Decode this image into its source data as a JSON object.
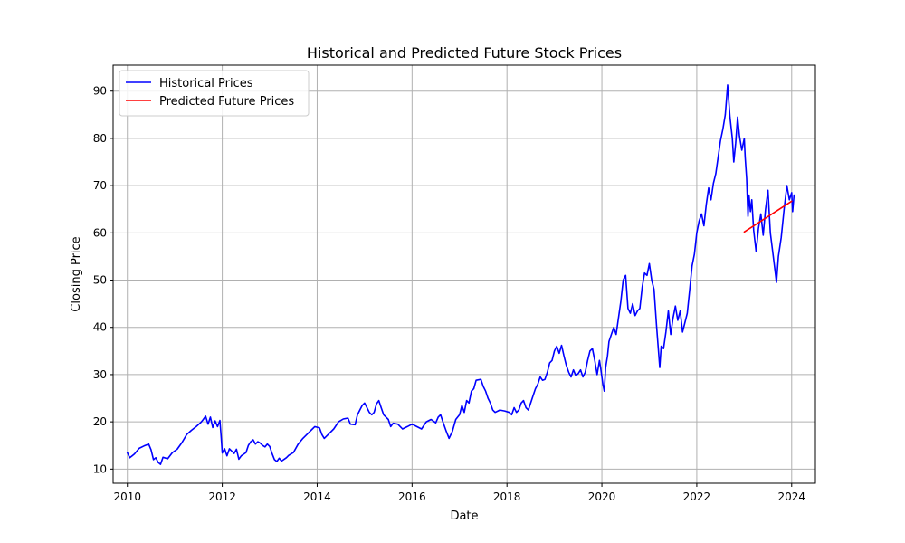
{
  "chart_data": {
    "type": "line",
    "title": "Historical and Predicted Future Stock Prices",
    "xlabel": "Date",
    "ylabel": "Closing Price",
    "xlim": [
      2009.7,
      2024.5
    ],
    "ylim": [
      7,
      95.5
    ],
    "x_ticks": [
      2010,
      2012,
      2014,
      2016,
      2018,
      2020,
      2022,
      2024
    ],
    "y_ticks": [
      10,
      20,
      30,
      40,
      50,
      60,
      70,
      80,
      90
    ],
    "grid": true,
    "legend_position": "top-left",
    "series": [
      {
        "name": "Historical Prices",
        "color": "#0000ff",
        "points": [
          [
            2010.0,
            13.5
          ],
          [
            2010.05,
            12.4
          ],
          [
            2010.1,
            12.8
          ],
          [
            2010.15,
            13.2
          ],
          [
            2010.25,
            14.4
          ],
          [
            2010.35,
            14.9
          ],
          [
            2010.45,
            15.3
          ],
          [
            2010.5,
            14.1
          ],
          [
            2010.55,
            12.0
          ],
          [
            2010.6,
            12.4
          ],
          [
            2010.65,
            11.4
          ],
          [
            2010.7,
            11.0
          ],
          [
            2010.75,
            12.5
          ],
          [
            2010.85,
            12.2
          ],
          [
            2010.95,
            13.5
          ],
          [
            2011.05,
            14.2
          ],
          [
            2011.15,
            15.6
          ],
          [
            2011.25,
            17.3
          ],
          [
            2011.35,
            18.2
          ],
          [
            2011.45,
            19.0
          ],
          [
            2011.55,
            19.9
          ],
          [
            2011.6,
            20.5
          ],
          [
            2011.65,
            21.2
          ],
          [
            2011.7,
            19.5
          ],
          [
            2011.75,
            21.0
          ],
          [
            2011.8,
            18.8
          ],
          [
            2011.85,
            20.2
          ],
          [
            2011.9,
            19.0
          ],
          [
            2011.95,
            20.3
          ],
          [
            2011.98,
            16.5
          ],
          [
            2012.0,
            13.4
          ],
          [
            2012.05,
            14.3
          ],
          [
            2012.1,
            12.8
          ],
          [
            2012.15,
            14.3
          ],
          [
            2012.25,
            13.3
          ],
          [
            2012.3,
            14.2
          ],
          [
            2012.35,
            12.1
          ],
          [
            2012.4,
            12.8
          ],
          [
            2012.5,
            13.5
          ],
          [
            2012.55,
            15.0
          ],
          [
            2012.6,
            15.8
          ],
          [
            2012.65,
            16.2
          ],
          [
            2012.7,
            15.3
          ],
          [
            2012.75,
            15.8
          ],
          [
            2012.8,
            15.5
          ],
          [
            2012.85,
            15.0
          ],
          [
            2012.9,
            14.7
          ],
          [
            2012.95,
            15.3
          ],
          [
            2013.0,
            14.8
          ],
          [
            2013.05,
            13.3
          ],
          [
            2013.1,
            12.0
          ],
          [
            2013.15,
            11.6
          ],
          [
            2013.2,
            12.3
          ],
          [
            2013.25,
            11.7
          ],
          [
            2013.35,
            12.4
          ],
          [
            2013.4,
            12.9
          ],
          [
            2013.5,
            13.5
          ],
          [
            2013.6,
            15.3
          ],
          [
            2013.7,
            16.5
          ],
          [
            2013.8,
            17.5
          ],
          [
            2013.9,
            18.5
          ],
          [
            2013.95,
            19.0
          ],
          [
            2014.05,
            18.7
          ],
          [
            2014.1,
            17.3
          ],
          [
            2014.15,
            16.5
          ],
          [
            2014.25,
            17.5
          ],
          [
            2014.35,
            18.5
          ],
          [
            2014.45,
            20.0
          ],
          [
            2014.55,
            20.6
          ],
          [
            2014.65,
            20.8
          ],
          [
            2014.7,
            19.5
          ],
          [
            2014.8,
            19.4
          ],
          [
            2014.85,
            21.5
          ],
          [
            2014.9,
            22.5
          ],
          [
            2014.95,
            23.5
          ],
          [
            2015.0,
            24.0
          ],
          [
            2015.05,
            23.0
          ],
          [
            2015.1,
            22.0
          ],
          [
            2015.15,
            21.5
          ],
          [
            2015.2,
            22.0
          ],
          [
            2015.25,
            23.8
          ],
          [
            2015.3,
            24.5
          ],
          [
            2015.35,
            23.0
          ],
          [
            2015.4,
            21.5
          ],
          [
            2015.5,
            20.5
          ],
          [
            2015.55,
            19.0
          ],
          [
            2015.6,
            19.7
          ],
          [
            2015.7,
            19.5
          ],
          [
            2015.8,
            18.5
          ],
          [
            2015.9,
            19.0
          ],
          [
            2016.0,
            19.5
          ],
          [
            2016.1,
            19.0
          ],
          [
            2016.2,
            18.5
          ],
          [
            2016.3,
            20.0
          ],
          [
            2016.4,
            20.5
          ],
          [
            2016.5,
            19.8
          ],
          [
            2016.55,
            21.0
          ],
          [
            2016.6,
            21.5
          ],
          [
            2016.65,
            20.0
          ],
          [
            2016.72,
            18.0
          ],
          [
            2016.78,
            16.5
          ],
          [
            2016.85,
            18.0
          ],
          [
            2016.92,
            20.5
          ],
          [
            2017.0,
            21.5
          ],
          [
            2017.05,
            23.5
          ],
          [
            2017.1,
            22.0
          ],
          [
            2017.15,
            24.5
          ],
          [
            2017.2,
            24.0
          ],
          [
            2017.25,
            26.5
          ],
          [
            2017.3,
            27.0
          ],
          [
            2017.35,
            28.8
          ],
          [
            2017.45,
            29.0
          ],
          [
            2017.5,
            27.5
          ],
          [
            2017.55,
            26.5
          ],
          [
            2017.6,
            25.0
          ],
          [
            2017.65,
            24.0
          ],
          [
            2017.7,
            22.5
          ],
          [
            2017.75,
            22.0
          ],
          [
            2017.85,
            22.5
          ],
          [
            2017.95,
            22.3
          ],
          [
            2018.05,
            22.0
          ],
          [
            2018.1,
            21.5
          ],
          [
            2018.15,
            23.0
          ],
          [
            2018.2,
            22.0
          ],
          [
            2018.25,
            22.5
          ],
          [
            2018.3,
            24.0
          ],
          [
            2018.35,
            24.5
          ],
          [
            2018.4,
            23.0
          ],
          [
            2018.45,
            22.5
          ],
          [
            2018.5,
            24.0
          ],
          [
            2018.55,
            25.5
          ],
          [
            2018.6,
            27.0
          ],
          [
            2018.65,
            28.0
          ],
          [
            2018.7,
            29.5
          ],
          [
            2018.75,
            28.8
          ],
          [
            2018.8,
            29.0
          ],
          [
            2018.85,
            30.5
          ],
          [
            2018.9,
            32.5
          ],
          [
            2018.95,
            33.0
          ],
          [
            2019.0,
            35.0
          ],
          [
            2019.05,
            36.0
          ],
          [
            2019.1,
            34.5
          ],
          [
            2019.15,
            36.2
          ],
          [
            2019.2,
            34.0
          ],
          [
            2019.25,
            32.0
          ],
          [
            2019.3,
            30.5
          ],
          [
            2019.35,
            29.5
          ],
          [
            2019.4,
            31.0
          ],
          [
            2019.45,
            29.8
          ],
          [
            2019.5,
            30.2
          ],
          [
            2019.55,
            31.0
          ],
          [
            2019.6,
            29.5
          ],
          [
            2019.65,
            30.5
          ],
          [
            2019.7,
            33.0
          ],
          [
            2019.75,
            35.0
          ],
          [
            2019.8,
            35.5
          ],
          [
            2019.85,
            33.0
          ],
          [
            2019.9,
            30.0
          ],
          [
            2019.95,
            33.0
          ],
          [
            2019.98,
            31.0
          ],
          [
            2020.02,
            28.0
          ],
          [
            2020.05,
            26.5
          ],
          [
            2020.08,
            31.5
          ],
          [
            2020.12,
            34.0
          ],
          [
            2020.15,
            37.0
          ],
          [
            2020.2,
            38.5
          ],
          [
            2020.25,
            40.0
          ],
          [
            2020.3,
            38.5
          ],
          [
            2020.35,
            42.0
          ],
          [
            2020.4,
            45.5
          ],
          [
            2020.45,
            50.0
          ],
          [
            2020.5,
            51.0
          ],
          [
            2020.55,
            44.0
          ],
          [
            2020.6,
            43.0
          ],
          [
            2020.65,
            45.0
          ],
          [
            2020.7,
            42.5
          ],
          [
            2020.75,
            43.5
          ],
          [
            2020.8,
            44.0
          ],
          [
            2020.85,
            48.5
          ],
          [
            2020.9,
            51.5
          ],
          [
            2020.95,
            51.0
          ],
          [
            2021.0,
            53.5
          ],
          [
            2021.05,
            50.0
          ],
          [
            2021.1,
            48.0
          ],
          [
            2021.15,
            40.5
          ],
          [
            2021.2,
            34.0
          ],
          [
            2021.22,
            31.5
          ],
          [
            2021.25,
            36.0
          ],
          [
            2021.3,
            35.5
          ],
          [
            2021.35,
            39.0
          ],
          [
            2021.4,
            43.5
          ],
          [
            2021.45,
            38.5
          ],
          [
            2021.5,
            42.0
          ],
          [
            2021.55,
            44.5
          ],
          [
            2021.6,
            41.5
          ],
          [
            2021.65,
            43.5
          ],
          [
            2021.7,
            39.0
          ],
          [
            2021.75,
            41.0
          ],
          [
            2021.8,
            43.0
          ],
          [
            2021.85,
            48.0
          ],
          [
            2021.9,
            53.0
          ],
          [
            2021.95,
            55.5
          ],
          [
            2022.0,
            60.0
          ],
          [
            2022.05,
            62.5
          ],
          [
            2022.1,
            64.0
          ],
          [
            2022.15,
            61.5
          ],
          [
            2022.2,
            66.0
          ],
          [
            2022.25,
            69.5
          ],
          [
            2022.3,
            67.0
          ],
          [
            2022.35,
            70.5
          ],
          [
            2022.4,
            72.5
          ],
          [
            2022.45,
            76.0
          ],
          [
            2022.5,
            79.5
          ],
          [
            2022.55,
            82.0
          ],
          [
            2022.6,
            85.0
          ],
          [
            2022.65,
            91.3
          ],
          [
            2022.7,
            84.5
          ],
          [
            2022.75,
            80.0
          ],
          [
            2022.78,
            75.0
          ],
          [
            2022.82,
            79.0
          ],
          [
            2022.86,
            84.5
          ],
          [
            2022.9,
            80.5
          ],
          [
            2022.95,
            77.5
          ],
          [
            2023.0,
            80.0
          ],
          [
            2023.02,
            76.0
          ],
          [
            2023.05,
            71.5
          ],
          [
            2023.08,
            63.5
          ],
          [
            2023.1,
            68.0
          ],
          [
            2023.13,
            64.5
          ],
          [
            2023.16,
            67.0
          ],
          [
            2023.2,
            60.5
          ],
          [
            2023.25,
            56.0
          ],
          [
            2023.3,
            61.0
          ],
          [
            2023.35,
            64.0
          ],
          [
            2023.4,
            59.5
          ],
          [
            2023.45,
            65.0
          ],
          [
            2023.5,
            69.0
          ],
          [
            2023.55,
            60.0
          ],
          [
            2023.6,
            56.0
          ],
          [
            2023.65,
            52.0
          ],
          [
            2023.68,
            49.5
          ],
          [
            2023.72,
            55.0
          ],
          [
            2023.78,
            59.0
          ],
          [
            2023.84,
            65.0
          ],
          [
            2023.9,
            70.0
          ],
          [
            2023.95,
            67.0
          ],
          [
            2024.0,
            68.5
          ],
          [
            2024.02,
            64.5
          ],
          [
            2024.05,
            68.0
          ]
        ]
      },
      {
        "name": "Predicted Future Prices",
        "color": "#ff0000",
        "points": [
          [
            2023.0,
            60.2
          ],
          [
            2024.0,
            66.7
          ]
        ]
      }
    ]
  }
}
